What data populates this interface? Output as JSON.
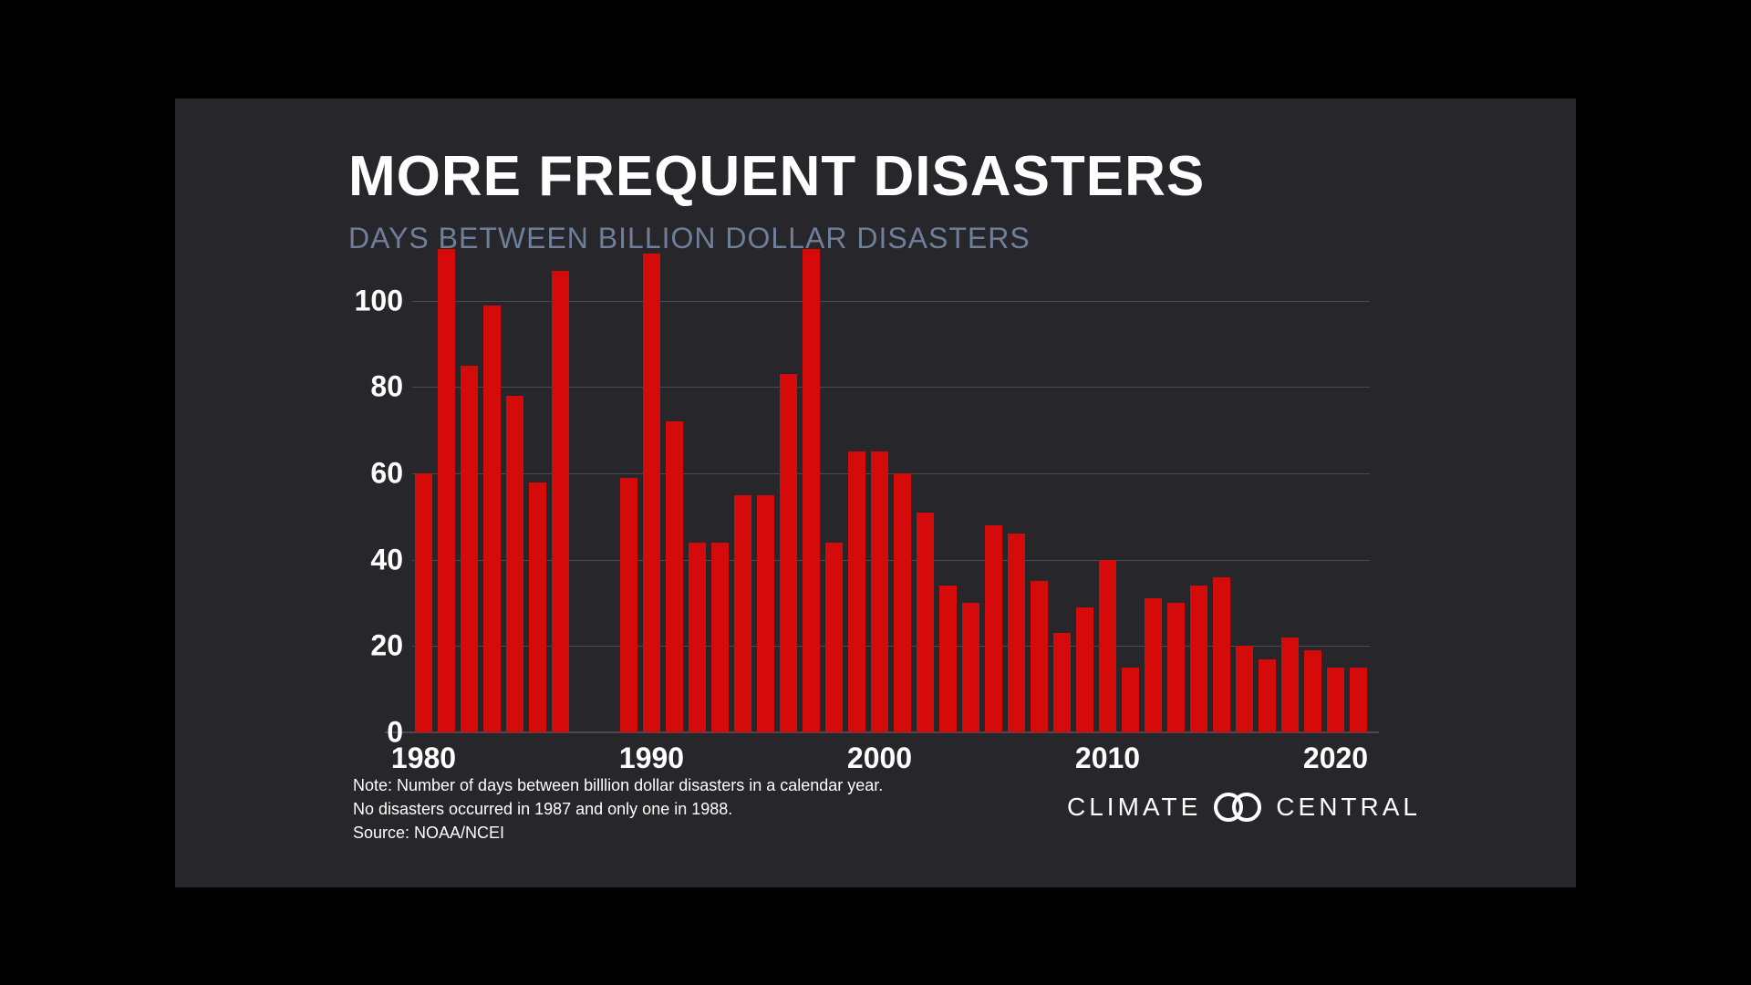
{
  "background_outer": "#000000",
  "background_inner": "#26262b",
  "title": {
    "text": "MORE FREQUENT DISASTERS",
    "fontsize": 62,
    "color": "#ffffff",
    "weight": 800
  },
  "subtitle": {
    "text": "DAYS BETWEEN BILLION DOLLAR DISASTERS",
    "fontsize": 32,
    "color": "#6f7f99",
    "weight": 400
  },
  "chart": {
    "type": "bar",
    "bar_color": "#d50a0a",
    "grid_color": "#4a4a50",
    "background_color": "#26262b",
    "bar_width_ratio": 0.78,
    "x_start": 1980,
    "x_end": 2021,
    "ylim": [
      0,
      112
    ],
    "y_ticks": [
      0,
      20,
      40,
      60,
      80,
      100
    ],
    "x_ticks": [
      1980,
      1990,
      2000,
      2010,
      2020
    ],
    "axis_label_fontsize": 32,
    "axis_label_color": "#ffffff",
    "axis_label_weight": 600,
    "years": [
      1980,
      1981,
      1982,
      1983,
      1984,
      1985,
      1986,
      1987,
      1988,
      1989,
      1990,
      1991,
      1992,
      1993,
      1994,
      1995,
      1996,
      1997,
      1998,
      1999,
      2000,
      2001,
      2002,
      2003,
      2004,
      2005,
      2006,
      2007,
      2008,
      2009,
      2010,
      2011,
      2012,
      2013,
      2014,
      2015,
      2016,
      2017,
      2018,
      2019,
      2020,
      2021
    ],
    "values": [
      60,
      112,
      85,
      99,
      78,
      58,
      107,
      0,
      0,
      59,
      111,
      72,
      44,
      44,
      55,
      55,
      83,
      112,
      44,
      65,
      65,
      60,
      51,
      34,
      30,
      48,
      46,
      35,
      23,
      29,
      40,
      15,
      31,
      30,
      34,
      36,
      20,
      17,
      22,
      19,
      15,
      15
    ]
  },
  "note": {
    "lines": [
      "Note: Number of days between billlion dollar disasters in a calendar year.",
      "No disasters occurred in 1987 and only one in 1988.",
      "Source:  NOAA/NCEI"
    ],
    "fontsize": 18,
    "color": "#ffffff"
  },
  "brand": {
    "text_left": "CLIMATE",
    "text_right": "CENTRAL",
    "fontsize": 28,
    "color": "#ffffff",
    "letter_spacing": 4
  }
}
